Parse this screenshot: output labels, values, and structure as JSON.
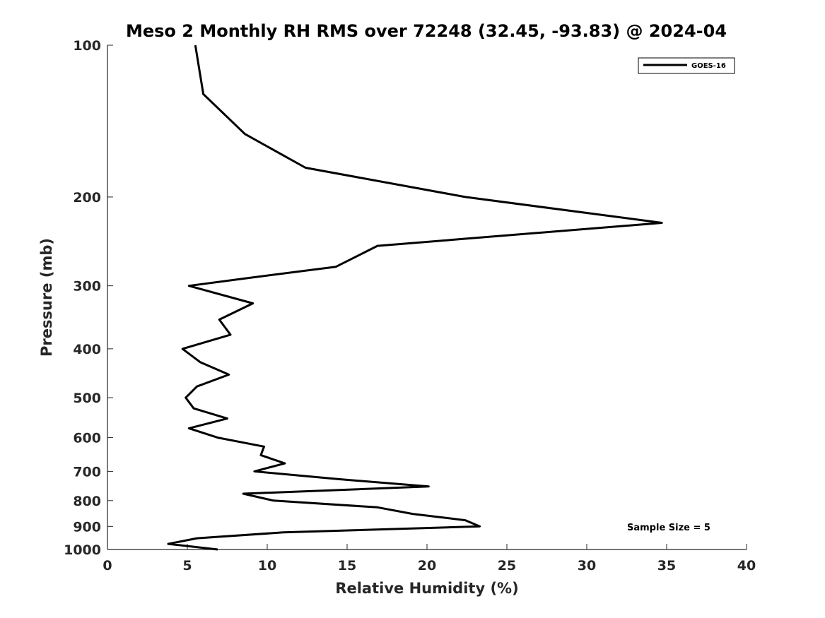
{
  "chart_data": {
    "type": "line",
    "title": "Meso 2 Monthly RH RMS over 72248 (32.45, -93.83) @ 2024-04",
    "xlabel": "Relative Humidity (%)",
    "ylabel": "Pressure (mb)",
    "xlim": [
      0,
      40
    ],
    "ylim": [
      100,
      1000
    ],
    "y_scale": "log",
    "y_reversed": true,
    "x_ticks": [
      "0",
      "5",
      "10",
      "15",
      "20",
      "25",
      "30",
      "35",
      "40"
    ],
    "x_tick_values": [
      0,
      5,
      10,
      15,
      20,
      25,
      30,
      35,
      40
    ],
    "y_ticks": [
      "100",
      "200",
      "300",
      "400",
      "500",
      "600",
      "700",
      "800",
      "900",
      "1000"
    ],
    "y_tick_values": [
      100,
      200,
      300,
      400,
      500,
      600,
      700,
      800,
      900,
      1000
    ],
    "grid": false,
    "legend_position": "top-right",
    "series": [
      {
        "name": "GOES-16",
        "color": "#000000",
        "points": [
          {
            "p": 100,
            "rh": 5.5
          },
          {
            "p": 125,
            "rh": 6.0
          },
          {
            "p": 150,
            "rh": 8.6
          },
          {
            "p": 175,
            "rh": 12.4
          },
          {
            "p": 200,
            "rh": 22.4
          },
          {
            "p": 225,
            "rh": 34.7
          },
          {
            "p": 250,
            "rh": 16.9
          },
          {
            "p": 275,
            "rh": 14.3
          },
          {
            "p": 290,
            "rh": 8.6
          },
          {
            "p": 300,
            "rh": 5.1
          },
          {
            "p": 325,
            "rh": 9.1
          },
          {
            "p": 350,
            "rh": 7.0
          },
          {
            "p": 375,
            "rh": 7.7
          },
          {
            "p": 400,
            "rh": 4.7
          },
          {
            "p": 425,
            "rh": 5.8
          },
          {
            "p": 450,
            "rh": 7.6
          },
          {
            "p": 475,
            "rh": 5.6
          },
          {
            "p": 500,
            "rh": 4.9
          },
          {
            "p": 525,
            "rh": 5.4
          },
          {
            "p": 550,
            "rh": 7.5
          },
          {
            "p": 575,
            "rh": 5.1
          },
          {
            "p": 600,
            "rh": 6.9
          },
          {
            "p": 625,
            "rh": 9.8
          },
          {
            "p": 650,
            "rh": 9.6
          },
          {
            "p": 675,
            "rh": 11.1
          },
          {
            "p": 700,
            "rh": 9.2
          },
          {
            "p": 725,
            "rh": 14.4
          },
          {
            "p": 750,
            "rh": 20.1
          },
          {
            "p": 775,
            "rh": 8.5
          },
          {
            "p": 800,
            "rh": 10.4
          },
          {
            "p": 825,
            "rh": 16.9
          },
          {
            "p": 850,
            "rh": 19.1
          },
          {
            "p": 875,
            "rh": 22.4
          },
          {
            "p": 900,
            "rh": 23.3
          },
          {
            "p": 925,
            "rh": 11.0
          },
          {
            "p": 950,
            "rh": 5.6
          },
          {
            "p": 975,
            "rh": 3.8
          },
          {
            "p": 1000,
            "rh": 6.9
          }
        ]
      }
    ],
    "annotations": [
      "Sample Size = 5"
    ]
  }
}
